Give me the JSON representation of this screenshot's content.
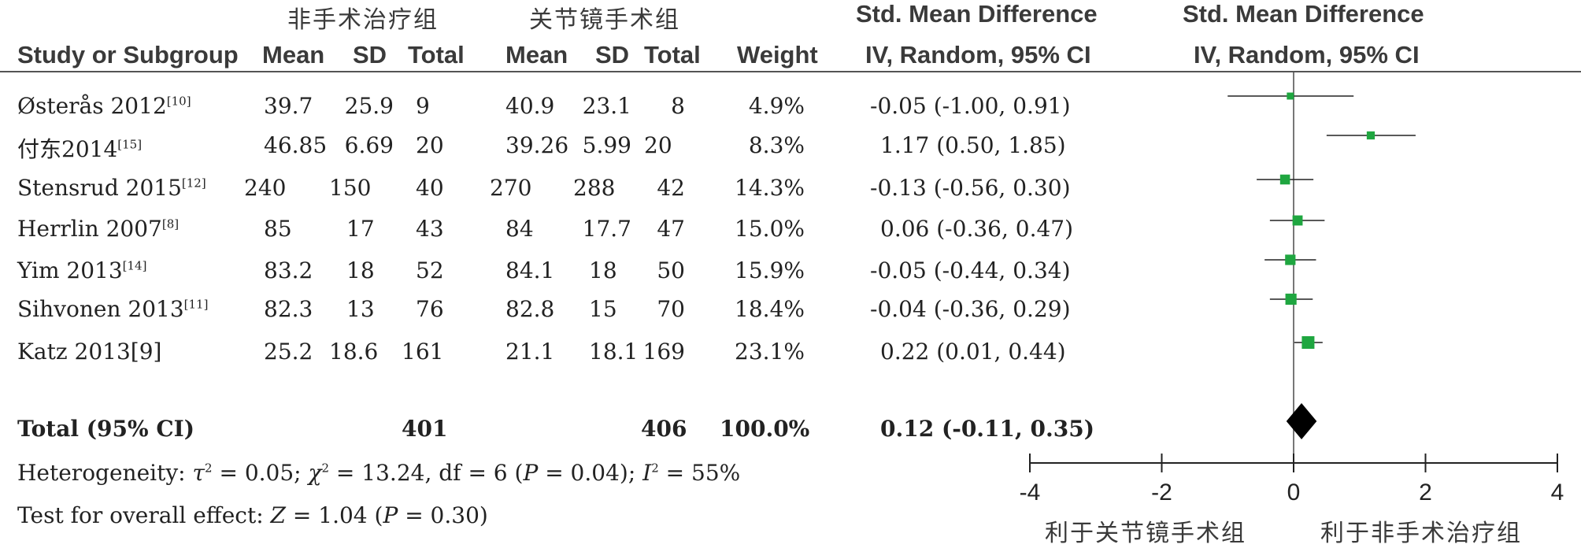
{
  "headers": {
    "group1": "非手术治疗组",
    "group2": "关节镜手术组",
    "effect_title_left": "Std. Mean Difference",
    "effect_method_left": "IV, Random, 95% CI",
    "effect_title_right": "Std. Mean Difference",
    "effect_method_right": "IV, Random, 95% CI",
    "study": "Study or Subgroup",
    "mean1": "Mean",
    "sd1": "SD",
    "total1": "Total",
    "mean2": "Mean",
    "sd2": "SD",
    "total2": "Total",
    "weight": "Weight"
  },
  "studies": [
    {
      "name": "Østerås 2012",
      "ref": "[10]",
      "m1": "39.7",
      "sd1": "25.9",
      "n1": "9",
      "m2": "40.9",
      "sd2": "23.1",
      "n2": "8",
      "weight": "4.9%",
      "ci": "-0.05 (-1.00, 0.91)"
    },
    {
      "name": "付东2014",
      "ref": "[15]",
      "m1": "46.85",
      "sd1": "6.69",
      "n1": "20",
      "m2": "39.26",
      "sd2": "5.99",
      "n2": "20",
      "weight": "8.3%",
      "ci": "1.17 (0.50, 1.85)"
    },
    {
      "name": "Stensrud 2015",
      "ref": "[12]",
      "m1": "240",
      "sd1": "150",
      "n1": "40",
      "m2": "270",
      "sd2": "288",
      "n2": "42",
      "weight": "14.3%",
      "ci": "-0.13 (-0.56, 0.30)"
    },
    {
      "name": "Herrlin 2007",
      "ref": "[8]",
      "m1": "85",
      "sd1": "17",
      "n1": "43",
      "m2": "84",
      "sd2": "17.7",
      "n2": "47",
      "weight": "15.0%",
      "ci": "0.06 (-0.36, 0.47)"
    },
    {
      "name": "Yim 2013",
      "ref": "[14]",
      "m1": "83.2",
      "sd1": "18",
      "n1": "52",
      "m2": "84.1",
      "sd2": "18",
      "n2": "50",
      "weight": "15.9%",
      "ci": "-0.05 (-0.44, 0.34)"
    },
    {
      "name": "Sihvonen 2013",
      "ref": "[11]",
      "m1": "82.3",
      "sd1": "13",
      "n1": "76",
      "m2": "82.8",
      "sd2": "15",
      "n2": "70",
      "weight": "18.4%",
      "ci": "-0.04 (-0.36, 0.29)"
    },
    {
      "name": "Katz 2013[9]",
      "ref": "",
      "m1": "25.2",
      "sd1": "18.6",
      "n1": "161",
      "m2": "21.1",
      "sd2": "18.1",
      "n2": "169",
      "weight": "23.1%",
      "ci": "0.22 (0.01, 0.44)"
    }
  ],
  "total": {
    "label": "Total (95% CI)",
    "n1": "401",
    "n2": "406",
    "weight": "100.0%",
    "ci": "0.12 (-0.11, 0.35)"
  },
  "heterogeneity": {
    "prefix": "Heterogeneity: ",
    "tau_sym": "τ",
    "tau_val": " = 0.05; ",
    "chi_sym": "χ",
    "chi_val": " = 13.24, df = 6 (",
    "p_sym": "P",
    "p_val": " = 0.04); ",
    "i_sym": "I",
    "i_val": " = 55%"
  },
  "overall": {
    "prefix": "Test for overall effect: ",
    "z_sym": "Z",
    "z_val": " = 1.04 (",
    "p_sym": "P",
    "p_val": " = 0.30)"
  },
  "favours": {
    "left": "利于关节镜手术组",
    "right": "利于非手术治疗组"
  },
  "colors": {
    "marker": "#1fa640",
    "line": "#222222",
    "rule": "#555555"
  },
  "chart_data": {
    "type": "forest",
    "xlim": [
      -4,
      4
    ],
    "xticks": [
      "-4",
      "-2",
      "0",
      "2",
      "4"
    ],
    "studies": [
      {
        "name": "Østerås 2012",
        "est": -0.05,
        "lo": -1.0,
        "hi": 0.91,
        "weight": 4.9
      },
      {
        "name": "付东2014",
        "est": 1.17,
        "lo": 0.5,
        "hi": 1.85,
        "weight": 8.3
      },
      {
        "name": "Stensrud 2015",
        "est": -0.13,
        "lo": -0.56,
        "hi": 0.3,
        "weight": 14.3
      },
      {
        "name": "Herrlin 2007",
        "est": 0.06,
        "lo": -0.36,
        "hi": 0.47,
        "weight": 15.0
      },
      {
        "name": "Yim 2013",
        "est": -0.05,
        "lo": -0.44,
        "hi": 0.34,
        "weight": 15.9
      },
      {
        "name": "Sihvonen 2013",
        "est": -0.04,
        "lo": -0.36,
        "hi": 0.29,
        "weight": 18.4
      },
      {
        "name": "Katz 2013",
        "est": 0.22,
        "lo": 0.01,
        "hi": 0.44,
        "weight": 23.1
      }
    ],
    "pooled": {
      "est": 0.12,
      "lo": -0.11,
      "hi": 0.35
    }
  }
}
